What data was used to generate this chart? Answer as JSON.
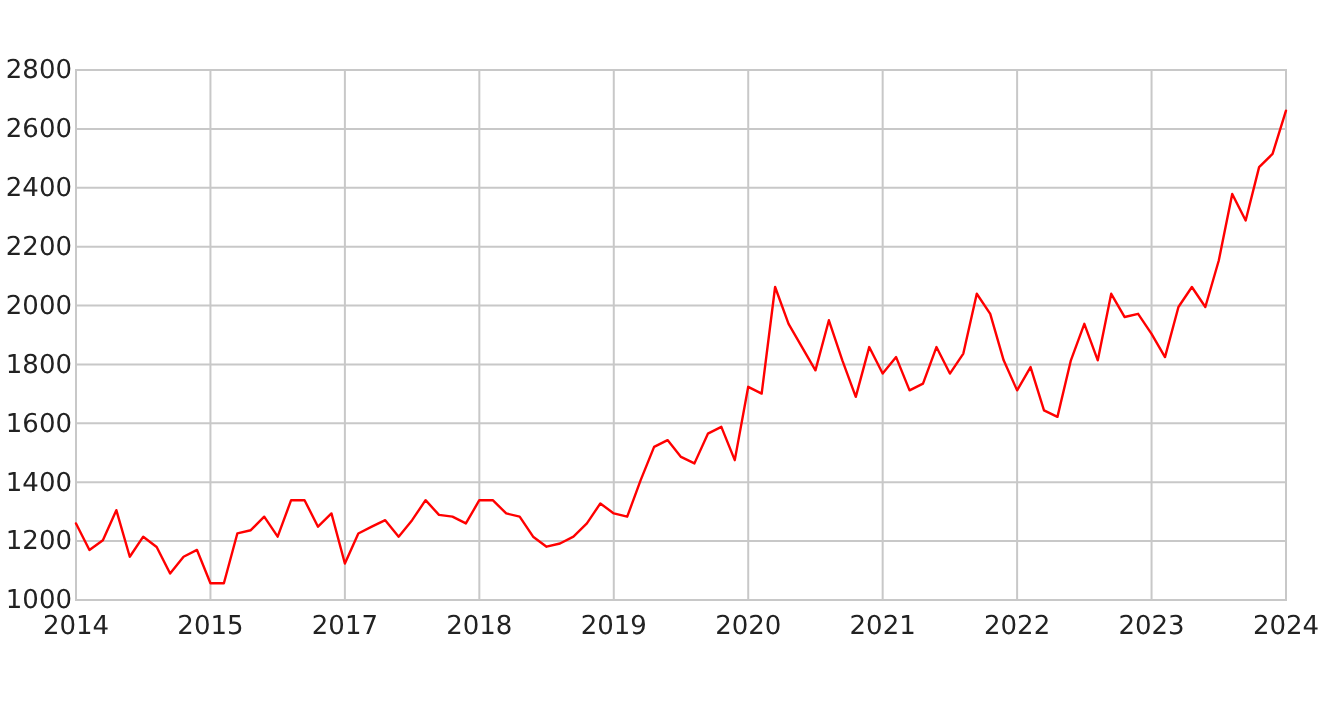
{
  "chart_data": {
    "type": "line",
    "categories": [
      "2014",
      null,
      null,
      null,
      null,
      null,
      null,
      null,
      null,
      null,
      "2015",
      null,
      null,
      null,
      null,
      null,
      null,
      null,
      null,
      null,
      "2017",
      null,
      null,
      null,
      null,
      null,
      null,
      null,
      null,
      null,
      "2018",
      null,
      null,
      null,
      null,
      null,
      null,
      null,
      null,
      null,
      "2019",
      null,
      null,
      null,
      null,
      null,
      null,
      null,
      null,
      null,
      "2020",
      null,
      null,
      null,
      null,
      null,
      null,
      null,
      null,
      null,
      "2021",
      null,
      null,
      null,
      null,
      null,
      null,
      null,
      null,
      null,
      "2022",
      null,
      null,
      null,
      null,
      null,
      null,
      null,
      null,
      null,
      "2023",
      null,
      null,
      null,
      null,
      null,
      null,
      null,
      null,
      null,
      "2024"
    ],
    "series": [
      {
        "color": "#ff0000",
        "values": [
          1260,
          1170,
          1203,
          1305,
          1147,
          1215,
          1180,
          1090,
          1147,
          1170,
          1057,
          1057,
          1226,
          1237,
          1283,
          1215,
          1339,
          1339,
          1249,
          1294,
          1124,
          1226,
          1249,
          1271,
          1215,
          1271,
          1339,
          1289,
          1283,
          1260,
          1339,
          1339,
          1294,
          1283,
          1215,
          1181,
          1192,
          1215,
          1260,
          1328,
          1294,
          1283,
          1407,
          1520,
          1543,
          1486,
          1464,
          1565,
          1588,
          1475,
          1724,
          1701,
          2063,
          1938,
          1859,
          1780,
          1950,
          1814,
          1690,
          1859,
          1769,
          1825,
          1712,
          1735,
          1859,
          1769,
          1837,
          2040,
          1972,
          1814,
          1712,
          1791,
          1644,
          1622,
          1814,
          1938,
          1814,
          2040,
          1961,
          1972,
          1904,
          1825,
          1995,
          2063,
          1995,
          2153,
          2379,
          2289,
          2470,
          2515,
          2662
        ]
      }
    ],
    "ylim": [
      1000,
      2800
    ],
    "yticks": [
      1000,
      1200,
      1400,
      1600,
      1800,
      2000,
      2200,
      2400,
      2600,
      2800
    ],
    "grid": true
  }
}
